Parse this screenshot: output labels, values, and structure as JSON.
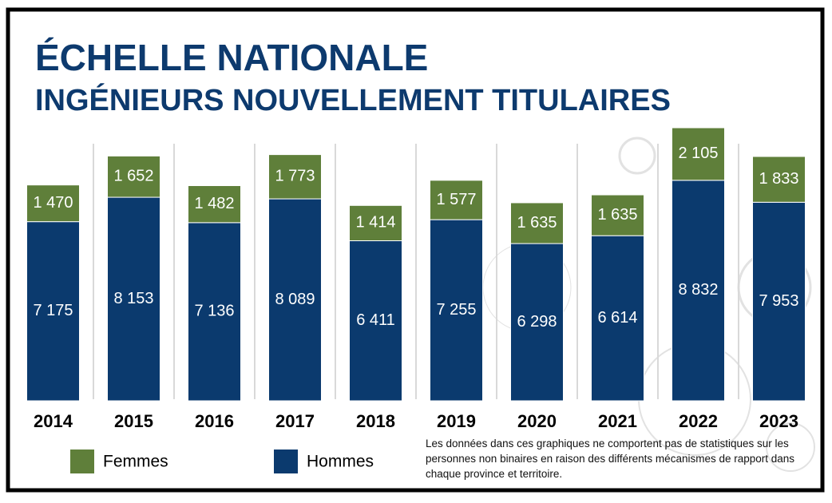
{
  "chart_data": {
    "type": "bar",
    "stacked": true,
    "title": "ÉCHELLE NATIONALE",
    "subtitle": "INGÉNIEURS NOUVELLEMENT TITULAIRES",
    "categories": [
      "2014",
      "2015",
      "2016",
      "2017",
      "2018",
      "2019",
      "2020",
      "2021",
      "2022",
      "2023"
    ],
    "series": [
      {
        "name": "Hommes",
        "color": "#0b3a6e",
        "values": [
          7175,
          8153,
          7136,
          8089,
          6411,
          7255,
          6298,
          6614,
          8832,
          7953
        ],
        "value_labels": [
          "7 175",
          "8 153",
          "7 136",
          "8 089",
          "6 411",
          "7 255",
          "6 298",
          "6 614",
          "8 832",
          "7 953"
        ]
      },
      {
        "name": "Femmes",
        "color": "#5f7f3a",
        "values": [
          1470,
          1652,
          1482,
          1773,
          1414,
          1577,
          1635,
          1635,
          2105,
          1833
        ],
        "value_labels": [
          "1 470",
          "1 652",
          "1 482",
          "1 773",
          "1 414",
          "1 577",
          "1 635",
          "1 635",
          "2 105",
          "1 833"
        ]
      }
    ],
    "legend": "bottom-left",
    "note": "Les données dans ces graphiques ne comportent pas de statistiques sur les personnes non binaires en raison des différents mécanismes de rapport dans chaque province et territoire."
  }
}
